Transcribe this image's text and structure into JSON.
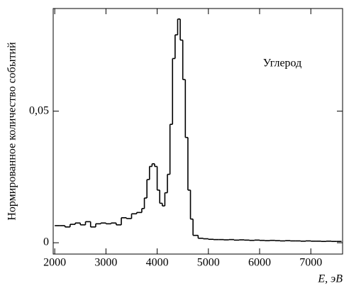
{
  "chart_data": {
    "type": "histogram",
    "annotation": "Углерод",
    "xlabel": "E, эВ",
    "ylabel": "Нормированное количество событий",
    "color": "#000000",
    "bins": [
      2000,
      2100,
      2200,
      2300,
      2400,
      2500,
      2600,
      2700,
      2800,
      2900,
      3000,
      3100,
      3200,
      3300,
      3400,
      3500,
      3600,
      3700,
      3750,
      3800,
      3850,
      3900,
      3950,
      4000,
      4050,
      4100,
      4150,
      4200,
      4250,
      4300,
      4350,
      4400,
      4450,
      4500,
      4550,
      4600,
      4650,
      4700,
      4800,
      4900,
      5000,
      5100,
      5200,
      5300,
      5400,
      5500,
      5600,
      5700,
      5800,
      5900,
      6000,
      6100,
      6200,
      6300,
      6400,
      6500,
      6600,
      6700,
      6800,
      6900,
      7000,
      7100,
      7200,
      7300,
      7400,
      7500,
      7600
    ],
    "counts": [
      0.0065,
      0.0065,
      0.006,
      0.007,
      0.0075,
      0.0068,
      0.008,
      0.006,
      0.0072,
      0.0075,
      0.0072,
      0.0075,
      0.0068,
      0.0095,
      0.0092,
      0.011,
      0.0115,
      0.013,
      0.017,
      0.024,
      0.029,
      0.03,
      0.029,
      0.02,
      0.015,
      0.014,
      0.019,
      0.026,
      0.045,
      0.07,
      0.079,
      0.085,
      0.077,
      0.062,
      0.04,
      0.02,
      0.009,
      0.0028,
      0.0017,
      0.0015,
      0.0013,
      0.0012,
      0.0012,
      0.0011,
      0.0012,
      0.001,
      0.0011,
      0.001,
      0.0009,
      0.001,
      0.0009,
      0.0008,
      0.0009,
      0.0008,
      0.0007,
      0.0008,
      0.0007,
      0.0007,
      0.0006,
      0.0007,
      0.0006,
      0.0006,
      0.0005,
      0.0006,
      0.0005,
      0.0005
    ],
    "xlim": [
      1970,
      7620
    ],
    "ylim": [
      -0.0043,
      0.089
    ],
    "xticks": [
      2000,
      3000,
      4000,
      5000,
      6000,
      7000
    ],
    "yticks": [
      0,
      {
        "value": 0.05,
        "label": "0,05"
      }
    ]
  }
}
